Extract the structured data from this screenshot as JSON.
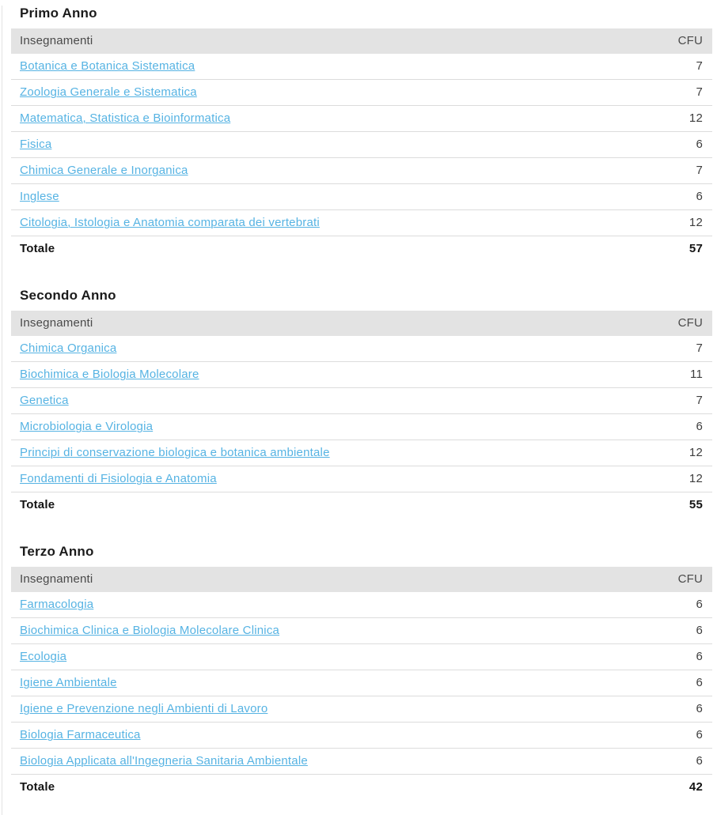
{
  "colors": {
    "link": "#56b3e3",
    "header_bg": "#e3e3e3",
    "header_text": "#4a4a4a",
    "border": "#dcdcdc",
    "heading_text": "#1b1b1b",
    "cell_text": "#3d3d3d",
    "total_text": "#141414"
  },
  "sections": [
    {
      "title": "Primo Anno",
      "columns": {
        "course": "Insegnamenti",
        "cfu": "CFU"
      },
      "rows": [
        {
          "name": "Botanica e Botanica Sistematica",
          "cfu": "7"
        },
        {
          "name": "Zoologia Generale e Sistematica",
          "cfu": "7"
        },
        {
          "name": "Matematica, Statistica e Bioinformatica",
          "cfu": "12"
        },
        {
          "name": "Fisica",
          "cfu": "6"
        },
        {
          "name": "Chimica Generale e Inorganica",
          "cfu": "7"
        },
        {
          "name": "Inglese",
          "cfu": "6"
        },
        {
          "name": "Citologia, Istologia e Anatomia comparata dei vertebrati",
          "cfu": "12"
        }
      ],
      "total": {
        "label": "Totale",
        "value": "57"
      }
    },
    {
      "title": "Secondo Anno",
      "columns": {
        "course": "Insegnamenti",
        "cfu": "CFU"
      },
      "rows": [
        {
          "name": "Chimica Organica",
          "cfu": "7"
        },
        {
          "name": "Biochimica e Biologia Molecolare",
          "cfu": "11"
        },
        {
          "name": "Genetica",
          "cfu": "7"
        },
        {
          "name": "Microbiologia e Virologia",
          "cfu": "6"
        },
        {
          "name": "Principi di conservazione biologica e botanica ambientale",
          "cfu": "12"
        },
        {
          "name": "Fondamenti di Fisiologia e Anatomia",
          "cfu": "12"
        }
      ],
      "total": {
        "label": "Totale",
        "value": "55"
      }
    },
    {
      "title": "Terzo Anno",
      "columns": {
        "course": "Insegnamenti",
        "cfu": "CFU"
      },
      "rows": [
        {
          "name": "Farmacologia",
          "cfu": "6"
        },
        {
          "name": "Biochimica Clinica e Biologia Molecolare Clinica",
          "cfu": "6"
        },
        {
          "name": "Ecologia",
          "cfu": "6"
        },
        {
          "name": "Igiene Ambientale",
          "cfu": "6"
        },
        {
          "name": "Igiene e Prevenzione negli Ambienti di Lavoro",
          "cfu": "6"
        },
        {
          "name": "Biologia Farmaceutica",
          "cfu": "6"
        },
        {
          "name": "Biologia Applicata all'Ingegneria Sanitaria Ambientale",
          "cfu": "6"
        }
      ],
      "total": {
        "label": "Totale",
        "value": "42"
      }
    }
  ]
}
